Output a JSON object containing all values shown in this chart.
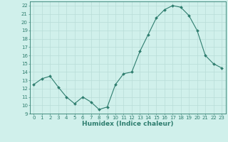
{
  "x": [
    0,
    1,
    2,
    3,
    4,
    5,
    6,
    7,
    8,
    9,
    10,
    11,
    12,
    13,
    14,
    15,
    16,
    17,
    18,
    19,
    20,
    21,
    22,
    23
  ],
  "y": [
    12.5,
    13.2,
    13.5,
    12.2,
    11.0,
    10.2,
    11.0,
    10.4,
    9.5,
    9.8,
    12.5,
    13.8,
    14.0,
    16.5,
    18.5,
    20.5,
    21.5,
    22.0,
    21.8,
    20.8,
    19.0,
    16.0,
    15.0,
    14.5
  ],
  "xlabel": "Humidex (Indice chaleur)",
  "ylabel_ticks": [
    9,
    10,
    11,
    12,
    13,
    14,
    15,
    16,
    17,
    18,
    19,
    20,
    21,
    22
  ],
  "ylim": [
    9,
    22.5
  ],
  "xlim": [
    -0.5,
    23.5
  ],
  "line_color": "#2e7d6e",
  "marker": "D",
  "marker_size": 2.0,
  "bg_color": "#d0f0eb",
  "grid_color": "#b8ddd7",
  "tick_fontsize": 5.0,
  "xlabel_fontsize": 6.5
}
